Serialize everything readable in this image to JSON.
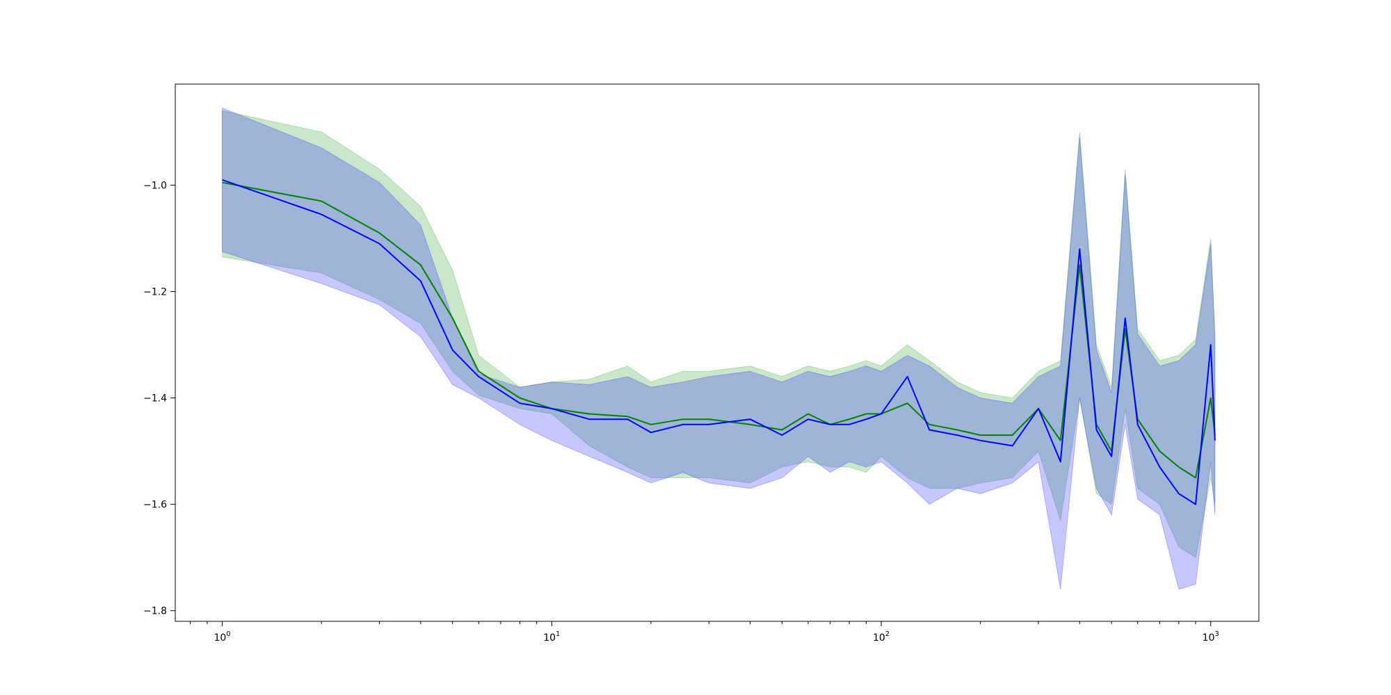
{
  "chart_data": {
    "type": "line",
    "title": "",
    "xlabel": "",
    "ylabel": "",
    "xscale": "log",
    "xlim": [
      0.72,
      1400
    ],
    "ylim": [
      -1.82,
      -0.81
    ],
    "grid": false,
    "legend": "none",
    "x_ticks": [
      {
        "base": "10",
        "exp": "0",
        "value": 1
      },
      {
        "base": "10",
        "exp": "1",
        "value": 10
      },
      {
        "base": "10",
        "exp": "2",
        "value": 100
      },
      {
        "base": "10",
        "exp": "3",
        "value": 1000
      }
    ],
    "y_ticks": [
      {
        "label": "−1.0",
        "value": -1.0
      },
      {
        "label": "−1.2",
        "value": -1.2
      },
      {
        "label": "−1.4",
        "value": -1.4
      },
      {
        "label": "−1.6",
        "value": -1.6
      },
      {
        "label": "−1.8",
        "value": -1.8
      }
    ],
    "series": [
      {
        "color": "#008000",
        "band_color": "#2ca02c",
        "band_opacity": 0.25,
        "x": [
          1,
          2,
          3,
          4,
          5,
          6,
          8,
          10,
          13,
          17,
          20,
          25,
          30,
          40,
          50,
          60,
          70,
          80,
          90,
          100,
          120,
          140,
          170,
          200,
          250,
          300,
          350,
          400,
          450,
          500,
          550,
          600,
          700,
          800,
          900,
          1000,
          1030
        ],
        "y": [
          -0.995,
          -1.03,
          -1.09,
          -1.15,
          -1.25,
          -1.35,
          -1.4,
          -1.42,
          -1.43,
          -1.435,
          -1.45,
          -1.44,
          -1.44,
          -1.45,
          -1.46,
          -1.43,
          -1.45,
          -1.44,
          -1.43,
          -1.43,
          -1.41,
          -1.45,
          -1.46,
          -1.47,
          -1.47,
          -1.42,
          -1.48,
          -1.15,
          -1.45,
          -1.5,
          -1.27,
          -1.44,
          -1.5,
          -1.53,
          -1.55,
          -1.4,
          -1.47
        ],
        "lower": [
          -1.135,
          -1.165,
          -1.215,
          -1.26,
          -1.35,
          -1.395,
          -1.42,
          -1.43,
          -1.49,
          -1.53,
          -1.55,
          -1.55,
          -1.55,
          -1.56,
          -1.53,
          -1.52,
          -1.53,
          -1.53,
          -1.54,
          -1.51,
          -1.55,
          -1.57,
          -1.57,
          -1.56,
          -1.55,
          -1.5,
          -1.63,
          -1.4,
          -1.58,
          -1.6,
          -1.42,
          -1.57,
          -1.6,
          -1.68,
          -1.7,
          -1.55,
          -1.6
        ],
        "upper": [
          -0.86,
          -0.9,
          -0.97,
          -1.04,
          -1.16,
          -1.32,
          -1.38,
          -1.37,
          -1.365,
          -1.34,
          -1.37,
          -1.35,
          -1.35,
          -1.34,
          -1.36,
          -1.34,
          -1.35,
          -1.34,
          -1.33,
          -1.34,
          -1.3,
          -1.33,
          -1.37,
          -1.39,
          -1.4,
          -1.35,
          -1.33,
          -0.9,
          -1.3,
          -1.38,
          -0.97,
          -1.27,
          -1.33,
          -1.32,
          -1.29,
          -1.1,
          -1.28
        ]
      },
      {
        "color": "#0000ff",
        "band_color": "#1f1fff",
        "band_opacity": 0.25,
        "x": [
          1,
          2,
          3,
          4,
          5,
          6,
          8,
          10,
          13,
          17,
          20,
          25,
          30,
          40,
          50,
          60,
          70,
          80,
          90,
          100,
          120,
          140,
          170,
          200,
          250,
          300,
          350,
          400,
          450,
          500,
          550,
          600,
          700,
          800,
          900,
          1000,
          1030
        ],
        "y": [
          -0.99,
          -1.055,
          -1.11,
          -1.18,
          -1.31,
          -1.36,
          -1.41,
          -1.42,
          -1.44,
          -1.44,
          -1.465,
          -1.45,
          -1.45,
          -1.44,
          -1.47,
          -1.44,
          -1.45,
          -1.45,
          -1.44,
          -1.43,
          -1.36,
          -1.46,
          -1.47,
          -1.48,
          -1.49,
          -1.42,
          -1.52,
          -1.12,
          -1.46,
          -1.51,
          -1.25,
          -1.45,
          -1.53,
          -1.58,
          -1.6,
          -1.3,
          -1.48
        ],
        "lower": [
          -1.125,
          -1.185,
          -1.225,
          -1.285,
          -1.375,
          -1.4,
          -1.45,
          -1.48,
          -1.51,
          -1.54,
          -1.56,
          -1.54,
          -1.56,
          -1.57,
          -1.55,
          -1.51,
          -1.54,
          -1.52,
          -1.53,
          -1.52,
          -1.56,
          -1.6,
          -1.57,
          -1.58,
          -1.56,
          -1.52,
          -1.76,
          -1.4,
          -1.57,
          -1.62,
          -1.45,
          -1.59,
          -1.62,
          -1.76,
          -1.75,
          -1.52,
          -1.62
        ],
        "upper": [
          -0.855,
          -0.93,
          -0.995,
          -1.075,
          -1.25,
          -1.355,
          -1.38,
          -1.37,
          -1.375,
          -1.36,
          -1.38,
          -1.37,
          -1.36,
          -1.35,
          -1.37,
          -1.35,
          -1.36,
          -1.35,
          -1.34,
          -1.35,
          -1.32,
          -1.34,
          -1.38,
          -1.4,
          -1.41,
          -1.36,
          -1.34,
          -0.91,
          -1.31,
          -1.39,
          -0.98,
          -1.28,
          -1.34,
          -1.33,
          -1.3,
          -1.11,
          -1.29
        ]
      }
    ]
  }
}
